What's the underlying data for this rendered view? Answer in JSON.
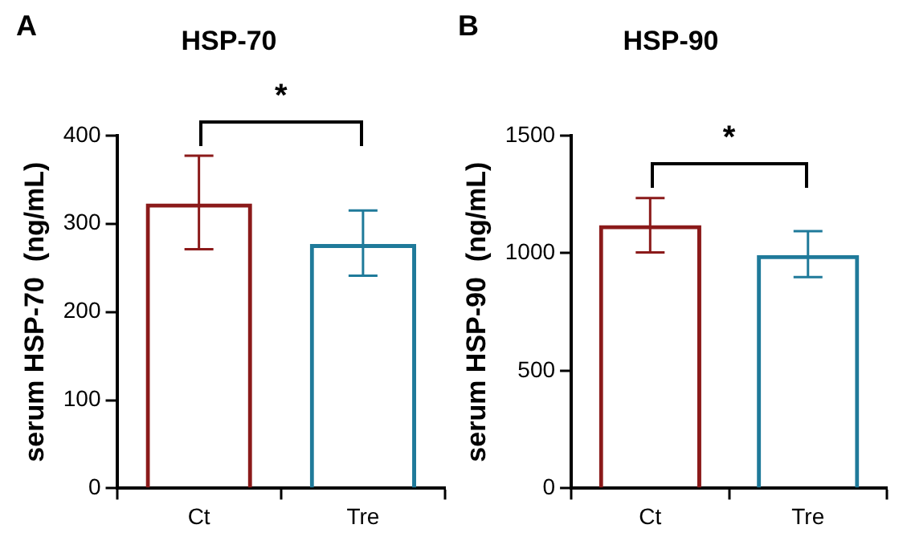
{
  "chart_data": [
    {
      "type": "bar",
      "title": "HSP-70",
      "ylabel": "serum HSP-70  (ng/mL)",
      "categories": [
        "Ct",
        "Tre"
      ],
      "values": [
        323,
        277
      ],
      "colors": [
        "#8b1a1a",
        "#1f7a9a"
      ],
      "errors": [
        [
          271,
          377
        ],
        [
          241,
          315
        ]
      ],
      "ylim": [
        0,
        400
      ],
      "yticks": [
        0,
        100,
        200,
        300,
        400
      ],
      "grid": false,
      "legend": false,
      "annotations": [
        "A",
        "*"
      ]
    },
    {
      "type": "bar",
      "title": "HSP-90",
      "ylabel": "serum HSP-90  (ng/mL)",
      "categories": [
        "Ct",
        "Tre"
      ],
      "values": [
        1119,
        992
      ],
      "colors": [
        "#8b1a1a",
        "#1f7a9a"
      ],
      "errors": [
        [
          1003,
          1234
        ],
        [
          898,
          1093
        ]
      ],
      "ylim": [
        0,
        1500
      ],
      "yticks": [
        0,
        500,
        1000,
        1500
      ],
      "grid": false,
      "legend": false,
      "annotations": [
        "B",
        "*"
      ]
    }
  ]
}
